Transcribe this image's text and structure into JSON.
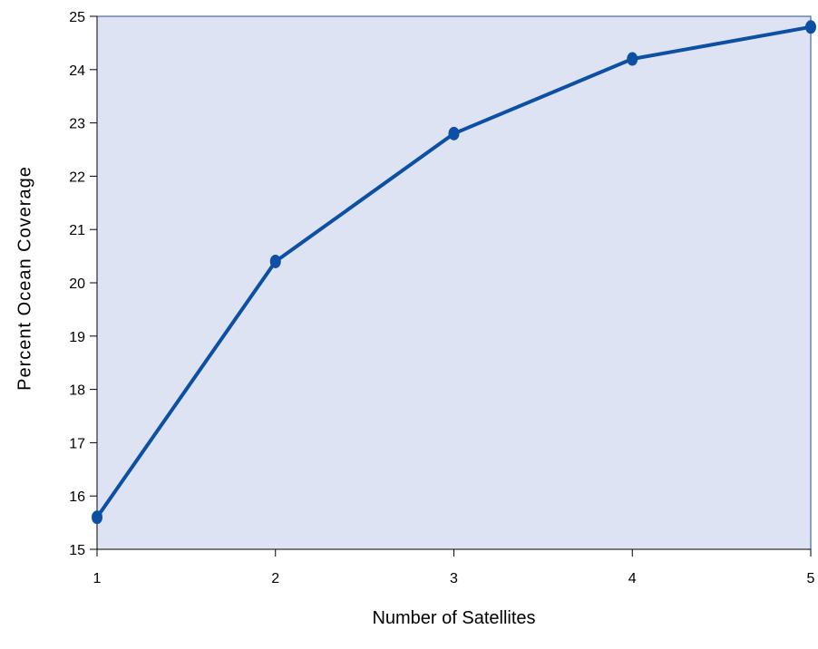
{
  "chart_data": {
    "type": "line",
    "title": "",
    "xlabel": "Number of Satellites",
    "ylabel": "Percent Ocean Coverage",
    "x": [
      1,
      2,
      3,
      4,
      5
    ],
    "series": [
      {
        "values": [
          15.6,
          20.4,
          22.8,
          24.2,
          24.8
        ]
      }
    ],
    "xlim": [
      1,
      5
    ],
    "ylim": [
      15,
      25
    ],
    "x_ticks": [
      "1",
      "2",
      "3",
      "4",
      "5"
    ],
    "y_ticks": [
      "15",
      "16",
      "17",
      "18",
      "19",
      "20",
      "21",
      "22",
      "23",
      "24",
      "25"
    ],
    "grid": false,
    "legend": "none",
    "colors": {
      "plot_background": "#dde3f3",
      "frame": "#1f4f9e",
      "line": "#0d4fa3",
      "marker": "#0d4fa3",
      "axis": "#000000"
    }
  }
}
